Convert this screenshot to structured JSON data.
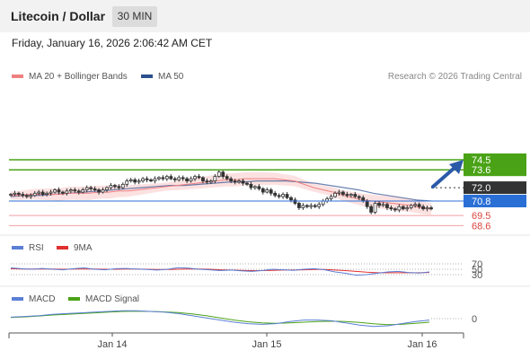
{
  "header": {
    "title": "Litecoin / Dollar",
    "timeframe": "30 MIN",
    "datetime": "Friday, January 16, 2026 2:06:42 AM CET"
  },
  "legend": {
    "ma20": "MA 20 + Bollinger Bands",
    "ma50": "MA 50",
    "ma20_color": "#f08080",
    "ma50_color": "#2c4f8f",
    "copyright": "Research © 2026 Trading Central"
  },
  "price_levels": {
    "r1": "74.5",
    "r2": "73.6",
    "current": "72.0",
    "s1": "70.8",
    "s2": "69.5",
    "s3": "68.6",
    "resistance_color": "#4aa316",
    "support_color": "#2a6fd6",
    "current_color": "#333333",
    "target_color": "#d9453d"
  },
  "rsi": {
    "label": "RSI",
    "ma_label": "9MA",
    "levels": [
      "70",
      "50",
      "30"
    ]
  },
  "macd": {
    "label": "MACD",
    "signal_label": "MACD Signal",
    "zero": "0"
  },
  "x_axis": {
    "ticks": [
      "Jan 14",
      "Jan 15",
      "Jan 16"
    ]
  },
  "chart_data": {
    "type": "candlestick",
    "title": "Litecoin / Dollar",
    "interval": "30 MIN",
    "y_range": [
      68,
      76
    ],
    "close": [
      71.4,
      71.5,
      71.4,
      71.3,
      71.2,
      71.3,
      71.5,
      71.6,
      71.4,
      71.5,
      71.6,
      71.8,
      71.6,
      71.5,
      71.7,
      71.8,
      71.7,
      71.6,
      71.8,
      72.0,
      71.9,
      71.8,
      71.6,
      71.8,
      72.0,
      72.2,
      72.1,
      72.0,
      72.3,
      72.6,
      72.7,
      72.5,
      72.6,
      72.8,
      72.7,
      72.6,
      72.8,
      72.9,
      72.8,
      73.0,
      72.8,
      72.7,
      72.9,
      72.8,
      72.6,
      72.8,
      73.0,
      72.9,
      72.6,
      72.5,
      72.6,
      73.0,
      73.4,
      73.0,
      72.8,
      72.6,
      72.5,
      72.6,
      72.4,
      72.3,
      72.0,
      72.1,
      71.9,
      71.6,
      71.8,
      71.5,
      71.3,
      71.2,
      71.4,
      71.1,
      70.9,
      70.6,
      70.2,
      70.4,
      70.3,
      70.4,
      70.3,
      70.5,
      70.8,
      71.0,
      71.2,
      71.5,
      71.6,
      71.4,
      71.3,
      71.4,
      71.2,
      71.1,
      70.8,
      70.3,
      69.8,
      70.6,
      70.4,
      70.5,
      70.2,
      70.1,
      70.0,
      70.3,
      70.1,
      70.2,
      70.4,
      70.5,
      70.3,
      70.1,
      70.2,
      70.1
    ],
    "ma20": [
      71.3,
      71.3,
      71.4,
      71.4,
      71.4,
      71.4,
      71.5,
      71.5,
      71.5,
      71.6,
      71.6,
      71.7,
      71.7,
      71.8,
      71.9,
      72.0,
      72.1,
      72.2,
      72.3,
      72.4,
      72.5,
      72.6,
      72.7,
      72.7,
      72.8,
      72.8,
      72.8,
      72.8,
      72.7,
      72.6,
      72.3,
      72.0,
      71.8,
      71.6,
      71.3,
      71.1,
      70.9,
      70.8,
      70.7,
      70.6,
      70.5,
      70.4,
      70.2,
      70.1
    ],
    "ma50": [
      71.2,
      71.3,
      71.3,
      71.4,
      71.5,
      71.6,
      71.7,
      71.8,
      71.9,
      72.0,
      72.1,
      72.2,
      72.2,
      72.3,
      72.4,
      72.5,
      72.5,
      72.6,
      72.6,
      72.6,
      72.5,
      72.4,
      72.2,
      72.0,
      71.8,
      71.5,
      71.3,
      71.1,
      70.9,
      70.8
    ],
    "levels": [
      74.5,
      73.6,
      72.0,
      70.8,
      69.5,
      68.6
    ],
    "rsi": [
      55,
      52,
      50,
      53,
      50,
      48,
      52,
      55,
      50,
      48,
      52,
      53,
      51,
      49,
      47,
      50,
      56,
      54,
      50,
      48,
      45,
      47,
      44,
      42,
      45,
      50,
      48,
      46,
      50,
      52,
      48,
      40,
      35,
      28,
      30,
      35,
      40,
      42,
      38,
      36,
      40
    ],
    "rsi_9ma": [
      52,
      51,
      51,
      51,
      51,
      50,
      51,
      51,
      51,
      50,
      50,
      51,
      51,
      50,
      49,
      49,
      50,
      51,
      51,
      50,
      48,
      47,
      46,
      45,
      45,
      46,
      47,
      47,
      48,
      49,
      49,
      47,
      45,
      42,
      39,
      37,
      37,
      37,
      37,
      37,
      38
    ],
    "macd": [
      0.1,
      0.15,
      0.2,
      0.3,
      0.35,
      0.4,
      0.45,
      0.5,
      0.55,
      0.55,
      0.5,
      0.45,
      0.35,
      0.2,
      0.05,
      -0.1,
      -0.25,
      -0.35,
      -0.4,
      -0.35,
      -0.2,
      -0.1,
      -0.1,
      -0.15,
      -0.3,
      -0.45,
      -0.55,
      -0.5,
      -0.35,
      -0.2,
      -0.1
    ],
    "macd_signal": [
      0.08,
      0.12,
      0.18,
      0.25,
      0.3,
      0.35,
      0.4,
      0.45,
      0.5,
      0.52,
      0.5,
      0.47,
      0.42,
      0.33,
      0.2,
      0.05,
      -0.1,
      -0.22,
      -0.3,
      -0.33,
      -0.3,
      -0.25,
      -0.2,
      -0.18,
      -0.2,
      -0.27,
      -0.36,
      -0.42,
      -0.4,
      -0.33,
      -0.25
    ],
    "x_ticks": [
      "Jan 14",
      "Jan 15",
      "Jan 16"
    ]
  }
}
